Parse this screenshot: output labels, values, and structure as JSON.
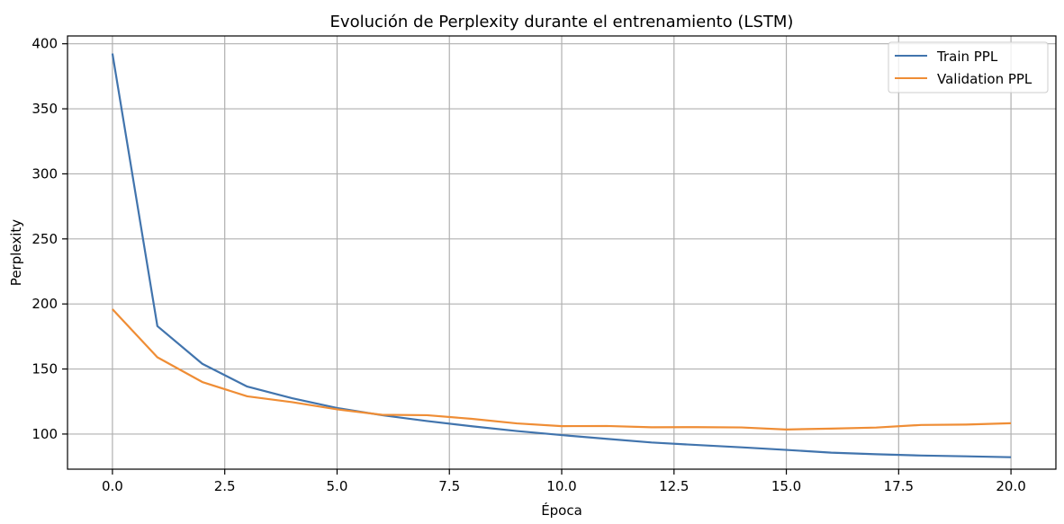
{
  "chart_data": {
    "type": "line",
    "title": "Evolución de Perplexity durante el entrenamiento (LSTM)",
    "xlabel": "Época",
    "ylabel": "Perplexity",
    "xlim": [
      -1,
      21
    ],
    "ylim": [
      73,
      406
    ],
    "xticks": [
      "0.0",
      "2.5",
      "5.0",
      "7.5",
      "10.0",
      "12.5",
      "15.0",
      "17.5",
      "20.0"
    ],
    "yticks": [
      "100",
      "150",
      "200",
      "250",
      "300",
      "350",
      "400"
    ],
    "grid": true,
    "legend_position": "top-right",
    "x": [
      0,
      1,
      2,
      3,
      4,
      5,
      6,
      7,
      8,
      9,
      10,
      11,
      12,
      13,
      14,
      15,
      16,
      17,
      18,
      19,
      20
    ],
    "series": [
      {
        "name": "Train PPL",
        "color": "#4174ad",
        "values": [
          392.5,
          183,
          154,
          136.5,
          127.5,
          120,
          114.5,
          110,
          106,
          102.3,
          99.2,
          96.3,
          93.5,
          91.6,
          89.8,
          87.8,
          85.7,
          84.5,
          83.5,
          82.9,
          82.2
        ]
      },
      {
        "name": "Validation PPL",
        "color": "#ef8d35",
        "values": [
          196,
          159,
          140,
          129,
          124.5,
          119,
          114.8,
          114.5,
          111.7,
          108.2,
          106.1,
          106.2,
          105.2,
          105.3,
          105.1,
          103.5,
          104.2,
          105,
          107,
          107.3,
          108.3
        ]
      }
    ]
  }
}
